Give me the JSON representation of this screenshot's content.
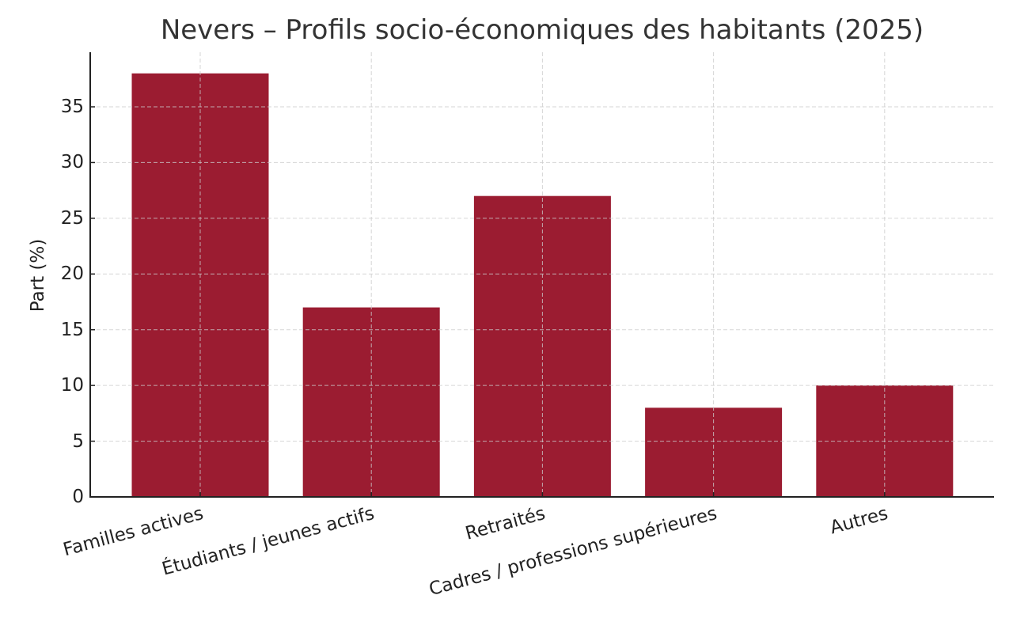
{
  "chart_data": {
    "type": "bar",
    "title": "Nevers – Profils socio-économiques des habitants (2025)",
    "xlabel": "",
    "ylabel": "Part (%)",
    "categories": [
      "Familles actives",
      "Étudiants / jeunes actifs",
      "Retraités",
      "Cadres / professions supérieures",
      "Autres"
    ],
    "values": [
      38,
      17,
      27,
      8,
      10
    ],
    "ylim": [
      0,
      40
    ],
    "yticks": [
      0,
      5,
      10,
      15,
      20,
      25,
      30,
      35
    ],
    "grid": true,
    "legend": null,
    "bar_color": "#9b1c31"
  }
}
